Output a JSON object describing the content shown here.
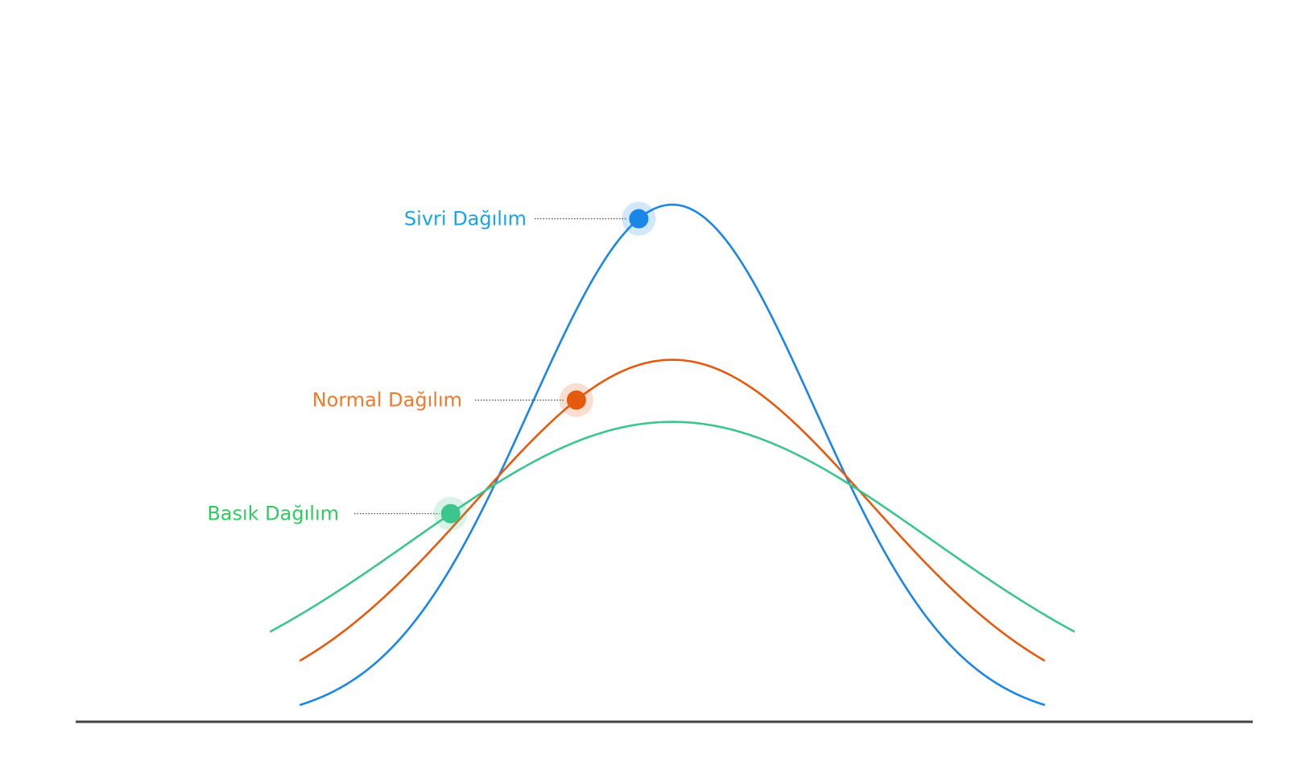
{
  "chart_data": {
    "type": "line",
    "series": [
      {
        "name": "Sivri Dağılım",
        "color": "#1a86e8",
        "label_color": "#16a5e8",
        "peak": 1.0,
        "sigma": 0.62
      },
      {
        "name": "Normal Dağılım",
        "color": "#e65a10",
        "label_color": "#f07a2a",
        "peak": 0.7,
        "sigma": 0.86
      },
      {
        "name": "Basık Dağılım",
        "color": "#3cc58c",
        "label_color": "#2ecc5e",
        "peak": 0.58,
        "sigma": 1.13
      }
    ]
  },
  "axis": {
    "color": "#444444"
  }
}
